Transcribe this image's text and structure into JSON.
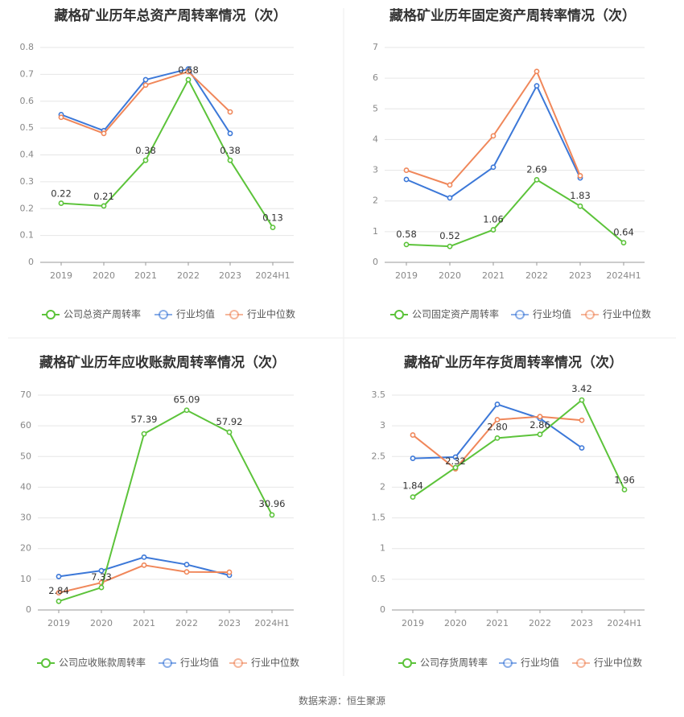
{
  "source_label": "数据来源：恒生聚源",
  "colors": {
    "company": "#5cc33a",
    "average": "#3c78d8",
    "median": "#f0875a"
  },
  "chart_data": [
    {
      "type": "line",
      "title": "藏格矿业历年总资产周转率情况（次）",
      "categories": [
        "2019",
        "2020",
        "2021",
        "2022",
        "2023",
        "2024H1"
      ],
      "ylim": [
        0,
        0.8
      ],
      "yticks": [
        "0",
        "0.1",
        "0.2",
        "0.3",
        "0.4",
        "0.5",
        "0.6",
        "0.7",
        "0.8"
      ],
      "legend_position": "bottom",
      "series": [
        {
          "name": "公司总资产周转率",
          "values": [
            0.22,
            0.21,
            0.38,
            0.68,
            0.38,
            0.13
          ],
          "labels": [
            "0.22",
            "0.21",
            "0.38",
            "0.68",
            "0.38",
            "0.13"
          ]
        },
        {
          "name": "行业均值",
          "values": [
            0.55,
            0.49,
            0.68,
            0.72,
            0.48,
            null
          ]
        },
        {
          "name": "行业中位数",
          "values": [
            0.54,
            0.48,
            0.66,
            0.71,
            0.56,
            null
          ]
        }
      ]
    },
    {
      "type": "line",
      "title": "藏格矿业历年固定资产周转率情况（次）",
      "categories": [
        "2019",
        "2020",
        "2021",
        "2022",
        "2023",
        "2024H1"
      ],
      "ylim": [
        0,
        7
      ],
      "yticks": [
        "0",
        "1",
        "2",
        "3",
        "4",
        "5",
        "6",
        "7"
      ],
      "legend_position": "bottom",
      "series": [
        {
          "name": "公司固定资产周转率",
          "values": [
            0.58,
            0.52,
            1.06,
            2.69,
            1.83,
            0.64
          ],
          "labels": [
            "0.58",
            "0.52",
            "1.06",
            "2.69",
            "1.83",
            "0.64"
          ]
        },
        {
          "name": "行业均值",
          "values": [
            2.7,
            2.1,
            3.1,
            5.75,
            2.75,
            null
          ]
        },
        {
          "name": "行业中位数",
          "values": [
            3.0,
            2.52,
            4.12,
            6.22,
            2.82,
            null
          ]
        }
      ]
    },
    {
      "type": "line",
      "title": "藏格矿业历年应收账款周转率情况（次）",
      "categories": [
        "2019",
        "2020",
        "2021",
        "2022",
        "2023",
        "2024H1"
      ],
      "ylim": [
        0,
        70
      ],
      "yticks": [
        "0",
        "10",
        "20",
        "30",
        "40",
        "50",
        "60",
        "70"
      ],
      "legend_position": "bottom",
      "series": [
        {
          "name": "公司应收账款周转率",
          "values": [
            2.84,
            7.33,
            57.39,
            65.09,
            57.92,
            30.96
          ],
          "labels": [
            "2.84",
            "7.33",
            "57.39",
            "65.09",
            "57.92",
            "30.96"
          ]
        },
        {
          "name": "行业均值",
          "values": [
            10.9,
            12.8,
            17.2,
            14.8,
            11.3,
            null
          ]
        },
        {
          "name": "行业中位数",
          "values": [
            5.6,
            8.9,
            14.6,
            12.4,
            12.3,
            null
          ]
        }
      ]
    },
    {
      "type": "line",
      "title": "藏格矿业历年存货周转率情况（次）",
      "categories": [
        "2019",
        "2020",
        "2021",
        "2022",
        "2023",
        "2024H1"
      ],
      "ylim": [
        0,
        3.5
      ],
      "yticks": [
        "0",
        "0.5",
        "1",
        "1.5",
        "2",
        "2.5",
        "3",
        "3.5"
      ],
      "legend_position": "bottom",
      "series": [
        {
          "name": "公司存货周转率",
          "values": [
            1.84,
            2.32,
            2.8,
            2.86,
            3.42,
            1.96
          ],
          "labels": [
            "1.84",
            "2.32",
            "2.80",
            "2.86",
            "3.42",
            "1.96"
          ]
        },
        {
          "name": "行业均值",
          "values": [
            2.47,
            2.49,
            3.35,
            3.12,
            2.64,
            null
          ]
        },
        {
          "name": "行业中位数",
          "values": [
            2.85,
            2.3,
            3.1,
            3.15,
            3.09,
            null
          ]
        }
      ]
    }
  ]
}
